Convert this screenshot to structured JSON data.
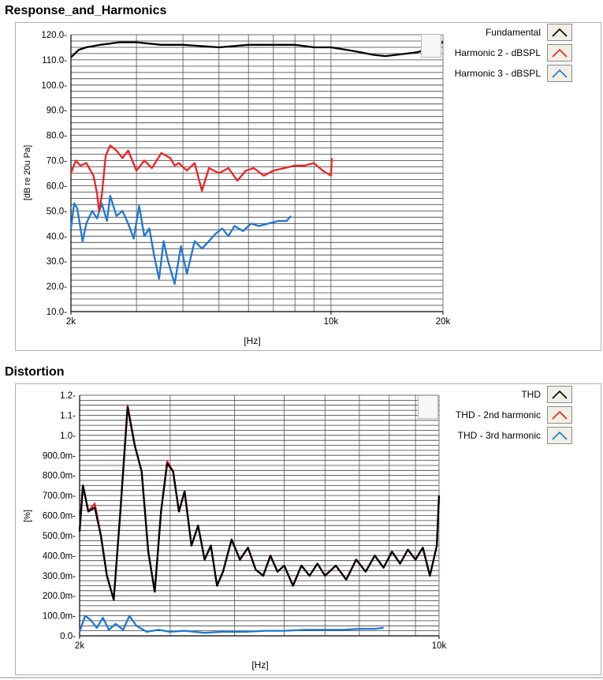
{
  "charts": {
    "response": {
      "title": "Response_and_Harmonics",
      "ylabel": "[dB re 20u Pa]",
      "xlabel": "[Hz]",
      "yticks": [
        "120.0",
        "110.0",
        "100.0",
        "90.0",
        "80.0",
        "70.0",
        "60.0",
        "50.0",
        "40.0",
        "30.0",
        "20.0",
        "10.0"
      ],
      "xticks": [
        "2k",
        "10k",
        "20k"
      ],
      "legend": [
        "Fundamental",
        "Harmonic 2 - dBSPL",
        "Harmonic 3 - dBSPL"
      ]
    },
    "distortion": {
      "title": "Distortion",
      "ylabel": "[%]",
      "xlabel": "[Hz]",
      "yticks": [
        "1.2",
        "1.1",
        "1.0",
        "900.0m",
        "800.0m",
        "700.0m",
        "600.0m",
        "500.0m",
        "400.0m",
        "300.0m",
        "200.0m",
        "100.0m",
        "0.0"
      ],
      "xticks": [
        "2k",
        "10k"
      ],
      "legend": [
        "THD",
        "THD - 2nd harmonic",
        "THD - 3rd harmonic"
      ]
    }
  },
  "colors": {
    "black": "#000000",
    "red": "#ee2222",
    "blue": "#1e78d2",
    "grid": "#3a3a3a"
  },
  "chart_data": [
    {
      "type": "line",
      "title": "Response_and_Harmonics",
      "xlabel": "[Hz]",
      "ylabel": "[dB re 20u Pa]",
      "x_scale": "log",
      "xlim": [
        2000,
        20000
      ],
      "ylim": [
        10,
        120
      ],
      "grid": true,
      "legend_position": "right",
      "series": [
        {
          "name": "Fundamental",
          "color": "#000000",
          "x": [
            2000,
            2100,
            2200,
            2400,
            2700,
            3000,
            3500,
            4000,
            5000,
            6000,
            7000,
            8000,
            9000,
            10000,
            11000,
            12000,
            13000,
            14000,
            15000,
            16000,
            17000,
            18000,
            19000,
            20000
          ],
          "y": [
            111,
            114,
            115,
            116,
            117,
            117,
            116,
            116,
            115,
            116,
            116,
            116,
            115,
            115,
            114,
            113,
            112,
            111.5,
            112,
            112.5,
            113,
            114,
            116,
            117
          ]
        },
        {
          "name": "Harmonic 2 - dBSPL",
          "color": "#ee2222",
          "x": [
            2000,
            2060,
            2120,
            2200,
            2300,
            2350,
            2380,
            2420,
            2480,
            2550,
            2650,
            2750,
            2850,
            3000,
            3150,
            3300,
            3500,
            3700,
            3800,
            3900,
            4100,
            4300,
            4500,
            4700,
            5000,
            5300,
            5600,
            5900,
            6200,
            6600,
            7000,
            7500,
            8000,
            8500,
            9000,
            9500,
            10000,
            10050
          ],
          "y": [
            65,
            70,
            68,
            69,
            64,
            57,
            50,
            56,
            72,
            76,
            74,
            71,
            74,
            66,
            70,
            67,
            73,
            71,
            68,
            69,
            66,
            69,
            58,
            67,
            65,
            67,
            62,
            66,
            67,
            64,
            66,
            67,
            68,
            68,
            69,
            66,
            64,
            71
          ]
        },
        {
          "name": "Harmonic 3 - dBSPL",
          "color": "#1e78d2",
          "x": [
            2000,
            2040,
            2080,
            2150,
            2200,
            2280,
            2350,
            2420,
            2500,
            2550,
            2650,
            2750,
            2850,
            2950,
            3050,
            3150,
            3250,
            3350,
            3450,
            3550,
            3650,
            3800,
            3950,
            4100,
            4300,
            4500,
            4700,
            4900,
            5100,
            5300,
            5500,
            5800,
            6100,
            6400,
            6800,
            7200,
            7600,
            7800
          ],
          "y": [
            43,
            53,
            51,
            38,
            45,
            50,
            47,
            53,
            46,
            56,
            48,
            50,
            45,
            39,
            52,
            40,
            43,
            32,
            23,
            38,
            30,
            21,
            36,
            25,
            38,
            35,
            38,
            41,
            43,
            40,
            44,
            42,
            45,
            44,
            45,
            46,
            46,
            48
          ]
        }
      ]
    },
    {
      "type": "line",
      "title": "Distortion",
      "xlabel": "[Hz]",
      "ylabel": "[%]",
      "x_scale": "log",
      "xlim": [
        2000,
        10000
      ],
      "ylim": [
        0,
        1.2
      ],
      "grid": true,
      "legend_position": "right",
      "series": [
        {
          "name": "THD",
          "color": "#000000",
          "x": [
            2000,
            2030,
            2080,
            2140,
            2200,
            2260,
            2330,
            2400,
            2480,
            2560,
            2640,
            2720,
            2800,
            2880,
            2960,
            3040,
            3120,
            3200,
            3300,
            3400,
            3500,
            3600,
            3700,
            3800,
            3950,
            4100,
            4250,
            4400,
            4550,
            4700,
            4850,
            5000,
            5200,
            5400,
            5600,
            5800,
            6000,
            6300,
            6600,
            6900,
            7200,
            7500,
            7800,
            8100,
            8400,
            8700,
            9000,
            9300,
            9600,
            9900,
            10000
          ],
          "y": [
            0.52,
            0.75,
            0.62,
            0.64,
            0.5,
            0.3,
            0.18,
            0.62,
            1.14,
            0.95,
            0.82,
            0.42,
            0.22,
            0.62,
            0.86,
            0.82,
            0.62,
            0.72,
            0.45,
            0.55,
            0.38,
            0.45,
            0.25,
            0.32,
            0.48,
            0.38,
            0.44,
            0.33,
            0.3,
            0.4,
            0.32,
            0.35,
            0.25,
            0.35,
            0.3,
            0.36,
            0.3,
            0.35,
            0.28,
            0.38,
            0.32,
            0.4,
            0.34,
            0.42,
            0.36,
            0.43,
            0.38,
            0.44,
            0.3,
            0.45,
            0.7
          ]
        },
        {
          "name": "THD - 2nd harmonic",
          "color": "#ee2222",
          "x": [
            2000,
            2030,
            2080,
            2140,
            2200,
            2260,
            2330,
            2400,
            2480,
            2560,
            2640,
            2720,
            2800,
            2880,
            2960,
            3040,
            3120,
            3200,
            3300,
            3400,
            3500,
            3600,
            3700,
            3800,
            3950,
            4100,
            4250,
            4400,
            4550,
            4700,
            4850,
            5000,
            5200,
            5400,
            5600,
            5800,
            6000,
            6300,
            6600,
            6900,
            7200,
            7500,
            7800,
            8100,
            8400,
            8700,
            9000,
            9300,
            9600,
            9900,
            10000
          ],
          "y": [
            0.52,
            0.75,
            0.62,
            0.66,
            0.5,
            0.3,
            0.18,
            0.62,
            1.15,
            0.95,
            0.82,
            0.42,
            0.22,
            0.62,
            0.87,
            0.82,
            0.62,
            0.72,
            0.45,
            0.55,
            0.38,
            0.45,
            0.25,
            0.32,
            0.48,
            0.38,
            0.44,
            0.33,
            0.3,
            0.4,
            0.32,
            0.35,
            0.25,
            0.35,
            0.3,
            0.36,
            0.3,
            0.35,
            0.28,
            0.38,
            0.32,
            0.4,
            0.34,
            0.42,
            0.36,
            0.43,
            0.38,
            0.44,
            0.3,
            0.45,
            0.7
          ]
        },
        {
          "name": "THD - 3rd harmonic",
          "color": "#1e78d2",
          "x": [
            2000,
            2050,
            2100,
            2160,
            2220,
            2280,
            2350,
            2430,
            2500,
            2580,
            2700,
            2850,
            3000,
            3200,
            3500,
            3800,
            4200,
            4600,
            5000,
            5500,
            6000,
            6500,
            7000,
            7500,
            7800
          ],
          "y": [
            0.02,
            0.1,
            0.08,
            0.04,
            0.09,
            0.03,
            0.06,
            0.03,
            0.1,
            0.05,
            0.02,
            0.03,
            0.02,
            0.025,
            0.015,
            0.02,
            0.02,
            0.025,
            0.025,
            0.03,
            0.03,
            0.03,
            0.035,
            0.035,
            0.04
          ]
        }
      ]
    }
  ]
}
